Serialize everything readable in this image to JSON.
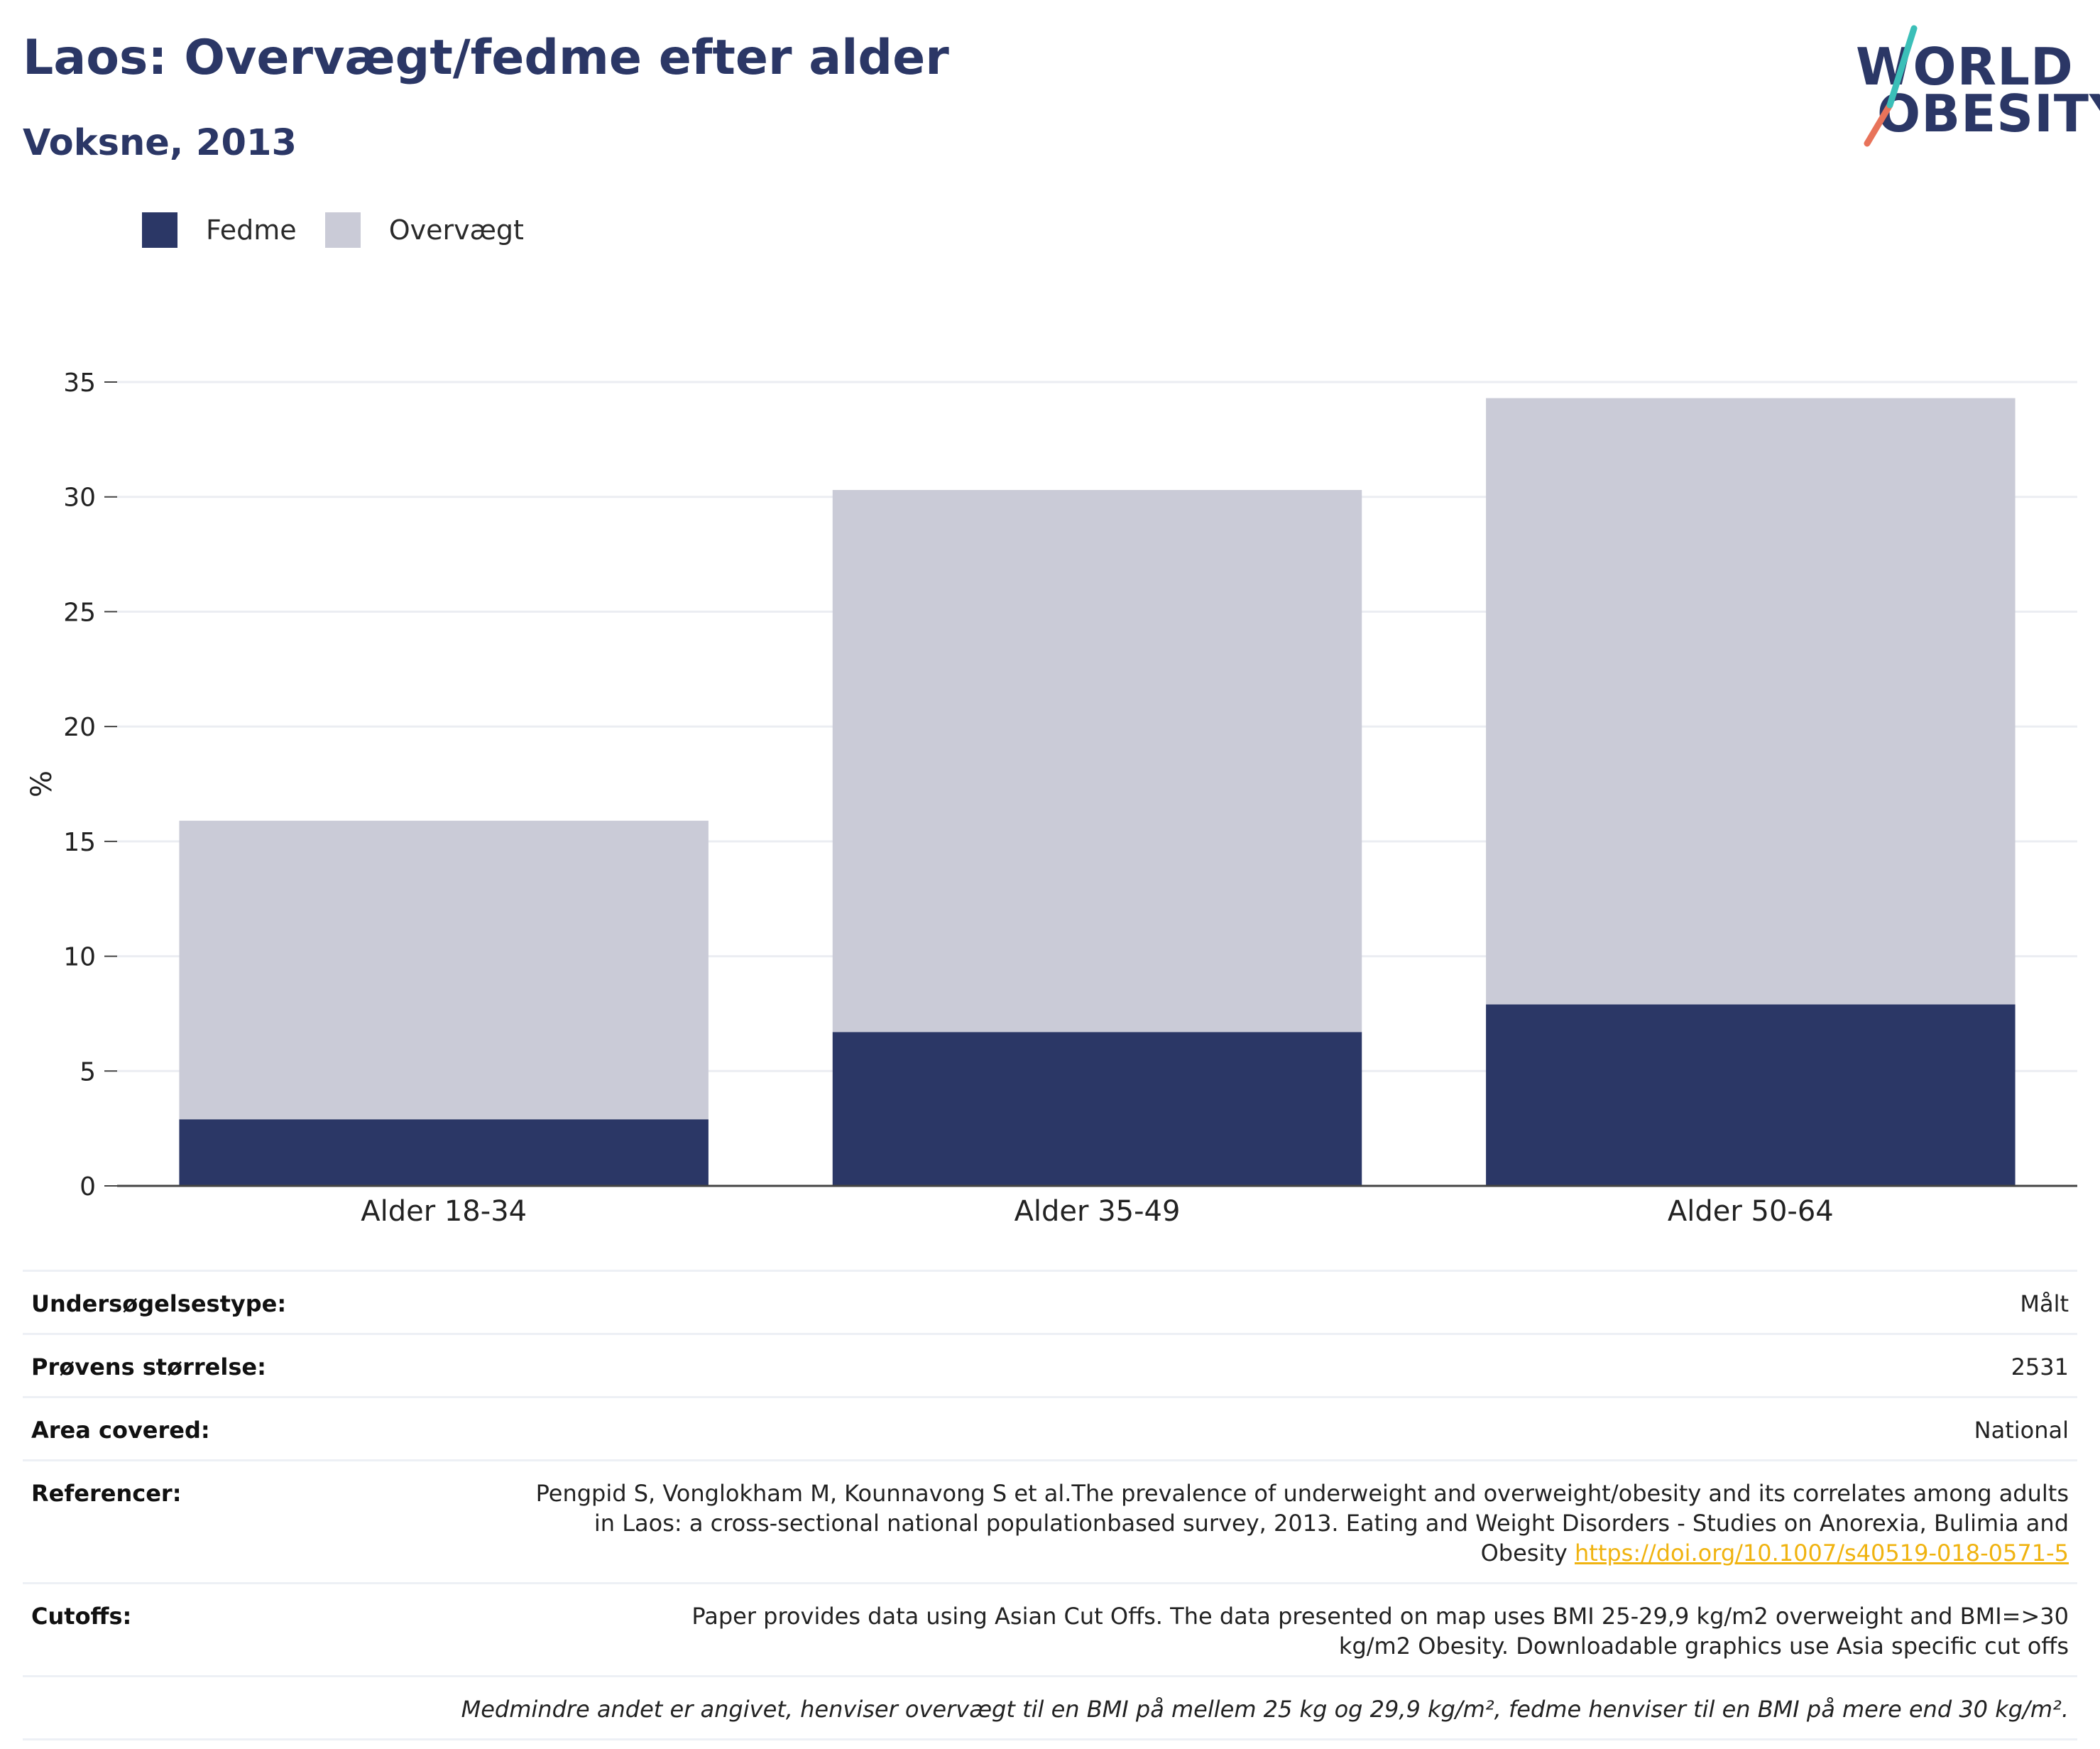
{
  "header": {
    "title": "Laos: Overvægt/fedme efter alder",
    "subtitle": "Voksne, 2013"
  },
  "logo": {
    "line1": "WORLD",
    "line2": "OBESITY",
    "slash_colors": [
      "#e8735a",
      "#3bbfb8"
    ]
  },
  "legend": [
    {
      "label": "Fedme",
      "color": "#2b3766"
    },
    {
      "label": "Overvægt",
      "color": "#cacbd7"
    }
  ],
  "chart_data": {
    "type": "bar",
    "stacked": true,
    "categories": [
      "Alder 18-34",
      "Alder 35-49",
      "Alder 50-64"
    ],
    "series": [
      {
        "name": "Fedme",
        "values": [
          2.9,
          6.7,
          7.9
        ],
        "color": "#2b3766"
      },
      {
        "name": "Overvægt",
        "values": [
          13.0,
          23.6,
          26.4
        ],
        "color": "#cacbd7"
      }
    ],
    "xlabel": "",
    "ylabel": "%",
    "ylim": [
      0,
      35
    ],
    "yticks": [
      0,
      5,
      10,
      15,
      20,
      25,
      30,
      35
    ],
    "grid": true,
    "legend_position": "top-left"
  },
  "info": {
    "survey_type": {
      "label": "Undersøgelsestype:",
      "value": "Målt"
    },
    "sample_size": {
      "label": "Prøvens størrelse:",
      "value": "2531"
    },
    "area": {
      "label": "Area covered:",
      "value": "National"
    },
    "references": {
      "label": "Referencer:",
      "text": "Pengpid S, Vonglokham M, Kounnavong S et al.The prevalence of underweight and overweight/obesity and its correlates among adults in Laos: a cross-sectional national populationbased survey, 2013. Eating and Weight Disorders - Studies on Anorexia, Bulimia and Obesity",
      "link": "https://doi.org/10.1007/s40519-018-0571-5"
    },
    "cutoffs": {
      "label": "Cutoffs:",
      "value": "Paper provides data using Asian Cut Offs. The data presented on map uses BMI 25-29,9 kg/m2 overweight and BMI=>30 kg/m2 Obesity. Downloadable graphics use Asia specific cut offs"
    },
    "note": "Medmindre andet er angivet, henviser overvægt til en BMI på mellem 25 kg og 29,9 kg/m², fedme henviser til en BMI på mere end 30 kg/m²."
  }
}
